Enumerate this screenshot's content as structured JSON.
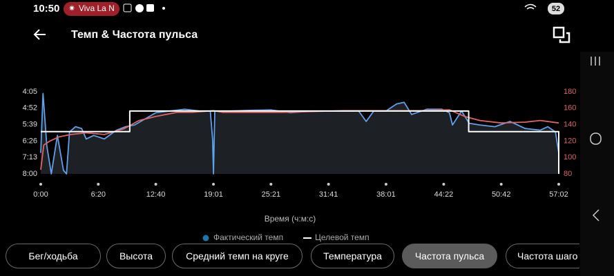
{
  "status_bar": {
    "time": "10:50",
    "notification": "Viva La N",
    "battery": "52"
  },
  "header": {
    "title": "Темп & Частота пульса"
  },
  "chart_data": {
    "type": "line",
    "x_label": "Время (ч:м:с)",
    "xlim": [
      0,
      3422
    ],
    "xticks": [
      {
        "value": 0,
        "label": "0:00"
      },
      {
        "value": 380,
        "label": "6:20"
      },
      {
        "value": 760,
        "label": "12:40"
      },
      {
        "value": 1141,
        "label": "19:01"
      },
      {
        "value": 1521,
        "label": "25:21"
      },
      {
        "value": 1901,
        "label": "31:41"
      },
      {
        "value": 2281,
        "label": "38:01"
      },
      {
        "value": 2662,
        "label": "44:22"
      },
      {
        "value": 3042,
        "label": "50:42"
      },
      {
        "value": 3422,
        "label": "57:02"
      }
    ],
    "ylim": [
      480,
      245
    ],
    "yticks": [
      {
        "value": 245,
        "label": "4:05"
      },
      {
        "value": 292,
        "label": "4:52"
      },
      {
        "value": 339,
        "label": "5:39"
      },
      {
        "value": 386,
        "label": "6:26"
      },
      {
        "value": 433,
        "label": "7:13"
      },
      {
        "value": 480,
        "label": "8:00"
      }
    ],
    "y2lim": [
      80,
      180
    ],
    "y2ticks": [
      80,
      100,
      120,
      140,
      160,
      180
    ],
    "y2_color": "#e06464",
    "series": [
      {
        "name": "Фактический темп",
        "color": "#5ea2ec",
        "legend_color": "#1f74a8",
        "x": [
          0,
          15,
          40,
          70,
          110,
          150,
          170,
          190,
          230,
          270,
          300,
          350,
          420,
          500,
          560,
          620,
          700,
          760,
          850,
          950,
          1050,
          1120,
          1135,
          1141,
          1150,
          1250,
          1400,
          1521,
          1650,
          1800,
          1950,
          2100,
          2150,
          2200,
          2281,
          2350,
          2400,
          2450,
          2550,
          2650,
          2700,
          2720,
          2780,
          2830,
          2900,
          3000,
          3100,
          3200,
          3300,
          3350,
          3400,
          3422
        ],
        "values": [
          420,
          250,
          400,
          480,
          370,
          470,
          480,
          360,
          345,
          350,
          380,
          370,
          380,
          355,
          345,
          340,
          320,
          305,
          300,
          295,
          300,
          300,
          380,
          480,
          300,
          300,
          298,
          297,
          305,
          300,
          300,
          300,
          330,
          300,
          300,
          280,
          275,
          310,
          295,
          295,
          305,
          340,
          300,
          335,
          340,
          345,
          330,
          350,
          355,
          345,
          360,
          420
        ]
      },
      {
        "name": "Целевой темп",
        "color": "#ffffff",
        "x": [
          0,
          588,
          588,
          2827,
          2827,
          3422,
          3422
        ],
        "values": [
          359,
          359,
          300,
          300,
          359,
          359,
          480
        ]
      },
      {
        "color": "#e06464",
        "axis": "y2",
        "x": [
          0,
          20,
          60,
          120,
          200,
          300,
          420,
          550,
          650,
          760,
          900,
          1000,
          1141,
          1200,
          1400,
          1600,
          1800,
          2000,
          2281,
          2500,
          2700,
          2800,
          2900,
          3042,
          3200,
          3300,
          3422
        ],
        "values": [
          85,
          115,
          120,
          125,
          128,
          130,
          128,
          135,
          145,
          150,
          155,
          155,
          157,
          155,
          155,
          155,
          156,
          157,
          157,
          157,
          158,
          150,
          145,
          142,
          143,
          145,
          142
        ]
      }
    ]
  },
  "buttons": [
    {
      "label": "Бег/ходьба"
    },
    {
      "label": "Высота"
    },
    {
      "label": "Средний темп на круге"
    },
    {
      "label": "Температура"
    },
    {
      "label": "Частота пульса",
      "selected": true
    },
    {
      "label": "Частота шаго"
    }
  ]
}
